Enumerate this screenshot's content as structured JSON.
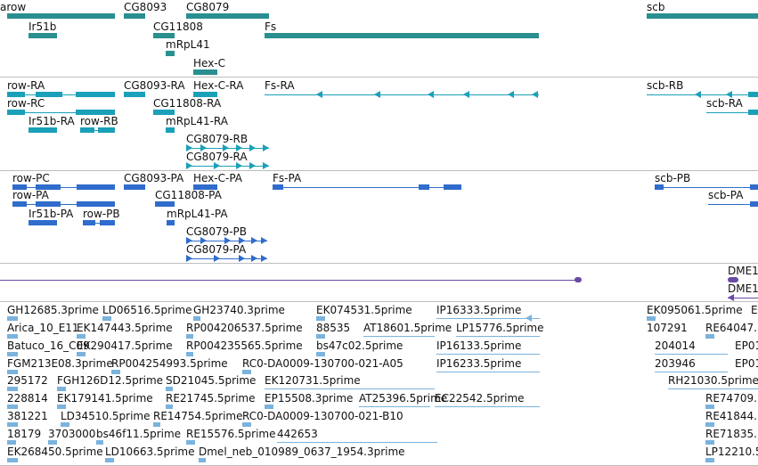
{
  "tracks": {
    "genes": {
      "labels": [
        "arow",
        "CG8093",
        "CG8079",
        "scb",
        "Ir51b",
        "CG11808",
        "Fs",
        "mRpL41",
        "Hex-C"
      ],
      "color": "#2a8f8f"
    },
    "transcripts_ra": {
      "labels": [
        "row-RA",
        "CG8093-RA",
        "Hex-C-RA",
        "Fs-RA",
        "scb-RB",
        "row-RC",
        "CG11808-RA",
        "scb-RA",
        "Ir51b-RA",
        "row-RB",
        "mRpL41-RA",
        "CG8079-RB",
        "CG8079-RA"
      ],
      "color": "#1aa0b8"
    },
    "proteins": {
      "labels": [
        "row-PC",
        "CG8093-PA",
        "Hex-C-PA",
        "Fs-PA",
        "scb-PB",
        "row-PA",
        "CG11808-PA",
        "scb-PA",
        "Ir51b-PA",
        "row-PB",
        "mRpL41-PA",
        "CG8079-PB",
        "CG8079-PA"
      ],
      "color": "#2f6ccc"
    },
    "dme": {
      "labels": [
        "DME1",
        "DME1"
      ],
      "color": "#6a4aa6"
    },
    "ests": {
      "labels": [
        "GH12685.3prime",
        "LD06516.5prime",
        "GH23740.3prime",
        "EK074531.5prime",
        "IP16333.5prime",
        "EK095061.5prime",
        "E",
        "Arica_10_E11",
        "EK147443.5prime",
        "RP004206537.5prime",
        "88535",
        "AT18601.5prime",
        "LP15776.5prime",
        "107291",
        "RE64047.",
        "Batuco_16_C09",
        "EK290417.5prime",
        "RP004235565.5prime",
        "bs47c02.5prime",
        "IP16133.5prime",
        "204014",
        "EP01",
        "FGM213E08.3prime",
        "RP004254993.5prime",
        "RC0-DA0009-130700-021-A05",
        "IP16233.5prime",
        "203946",
        "EP01",
        "295172",
        "FGH126D12.5prime",
        "SD21045.5prime",
        "EK120731.5prime",
        "RH21030.5prime",
        "228814",
        "EK179141.5prime",
        "RE21745.5prime",
        "EP15508.3prime",
        "AT25396.5prime",
        "EC22542.5prime",
        "RE74709.",
        "381221",
        "LD34510.5prime",
        "RE14754.5prime",
        "RC0-DA0009-130700-021-B10",
        "RE41844.",
        "18179",
        "3703000",
        "bs46f11.5prime",
        "RE15576.5prime",
        "442653",
        "RE71835.",
        "EK268450.5prime",
        "LD10663.5prime",
        "Dmel_neb_010989_0637_1954.3prime",
        "LP12210.5"
      ],
      "color": "#7ab3dd"
    }
  }
}
